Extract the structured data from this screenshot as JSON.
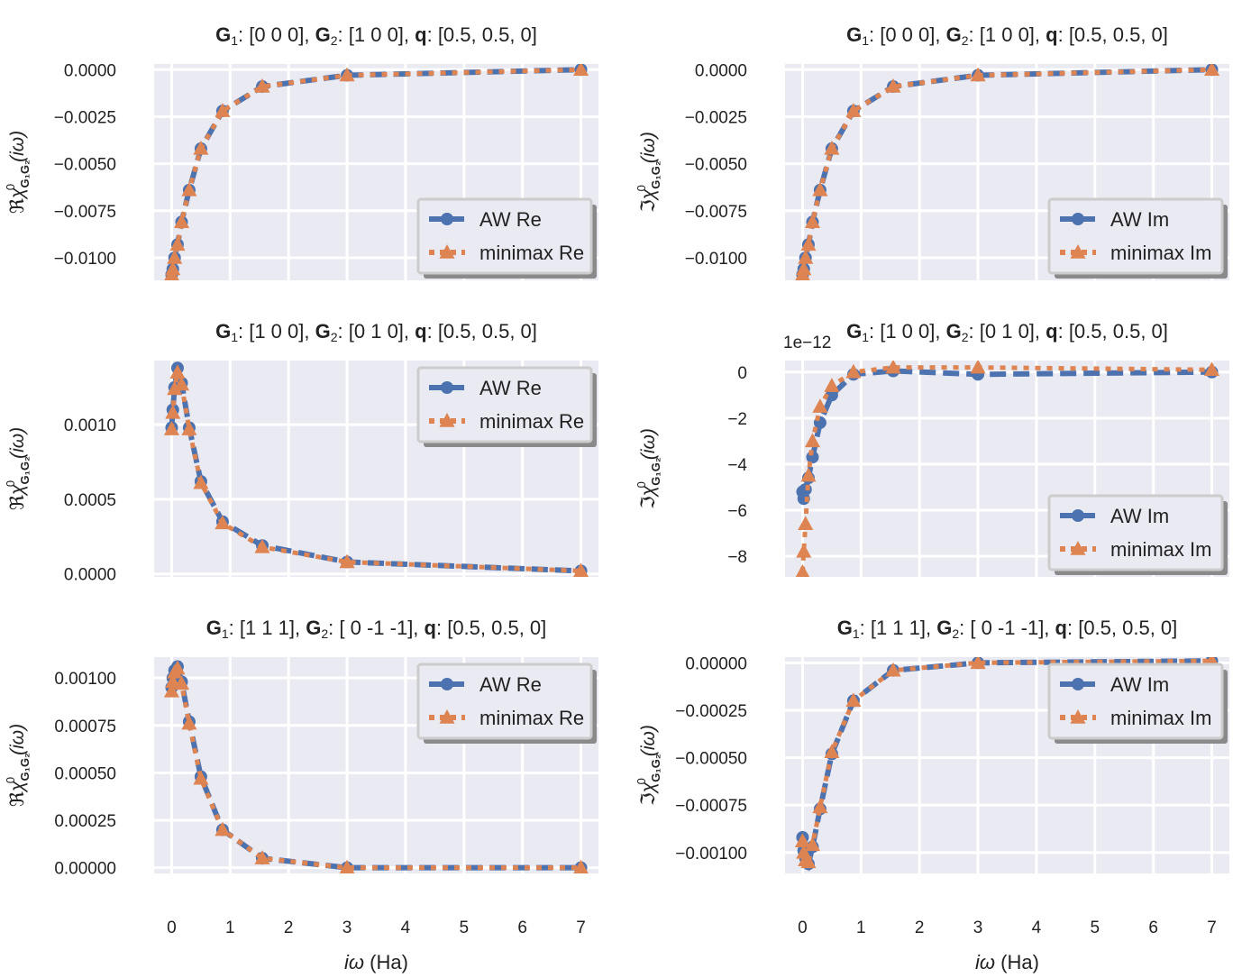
{
  "figure": {
    "xlabel_prefix": "iω",
    "xlabel_unit": " (Ha)"
  },
  "colors": {
    "aw": "#4c72b0",
    "minimax": "#dd8452",
    "plot_bg": "#eaeaf2",
    "grid": "#ffffff"
  },
  "chart_data": [
    {
      "type": "line",
      "title": "G₁: [0 0 0], G₂: [1 0 0], q: [0.5, 0.5, 0]",
      "title_parts": [
        [
          "G",
          true
        ],
        [
          "1",
          false,
          "sub"
        ],
        [
          ": [0 0 0], ",
          false
        ],
        [
          "G",
          true
        ],
        [
          "2",
          false,
          "sub"
        ],
        [
          ": [1 0 0], ",
          false
        ],
        [
          "q",
          true
        ],
        [
          ": [0.5, 0.5, 0]",
          false
        ]
      ],
      "ylabel": "ℜχ⁰G₁G₂(iω)",
      "ylabel_prefix": "ℜ",
      "xlim": [
        -0.3,
        7.3
      ],
      "ylim": [
        -0.0112,
        0.0003
      ],
      "yticks": [
        0.0,
        -0.0025,
        -0.005,
        -0.0075,
        -0.01
      ],
      "yticklabels": [
        "0.0000",
        "−0.0025",
        "−0.0050",
        "−0.0075",
        "−0.0100"
      ],
      "xticks": [
        0,
        1,
        2,
        3,
        4,
        5,
        6,
        7
      ],
      "xticklabels": [],
      "legend": {
        "placement": "lower right"
      },
      "series": [
        {
          "name": "AW Re",
          "marker": "circle",
          "x": [
            0.0,
            0.02,
            0.05,
            0.1,
            0.17,
            0.3,
            0.5,
            0.87,
            1.55,
            3.0,
            7.0
          ],
          "y": [
            -0.0109,
            -0.0106,
            -0.01,
            -0.0093,
            -0.0081,
            -0.0064,
            -0.0042,
            -0.0022,
            -0.0009,
            -0.0003,
            0.0
          ]
        },
        {
          "name": "minimax Re",
          "marker": "triangle",
          "x": [
            0.0,
            0.02,
            0.05,
            0.1,
            0.17,
            0.3,
            0.5,
            0.87,
            1.55,
            3.0,
            7.0
          ],
          "y": [
            -0.0109,
            -0.0106,
            -0.01,
            -0.0093,
            -0.0081,
            -0.0064,
            -0.0042,
            -0.0022,
            -0.0009,
            -0.0003,
            0.0
          ]
        }
      ]
    },
    {
      "type": "line",
      "title": "G₁: [0 0 0], G₂: [1 0 0], q: [0.5, 0.5, 0]",
      "title_parts": [
        [
          "G",
          true
        ],
        [
          "1",
          false,
          "sub"
        ],
        [
          ": [0 0 0], ",
          false
        ],
        [
          "G",
          true
        ],
        [
          "2",
          false,
          "sub"
        ],
        [
          ": [1 0 0], ",
          false
        ],
        [
          "q",
          true
        ],
        [
          ": [0.5, 0.5, 0]",
          false
        ]
      ],
      "ylabel": "ℑχ⁰G₁G₂(iω)",
      "ylabel_prefix": "ℑ",
      "xlim": [
        -0.3,
        7.3
      ],
      "ylim": [
        -0.0112,
        0.0003
      ],
      "yticks": [
        0.0,
        -0.0025,
        -0.005,
        -0.0075,
        -0.01
      ],
      "yticklabels": [
        "0.0000",
        "−0.0025",
        "−0.0050",
        "−0.0075",
        "−0.0100"
      ],
      "xticks": [
        0,
        1,
        2,
        3,
        4,
        5,
        6,
        7
      ],
      "xticklabels": [],
      "legend": {
        "placement": "lower right"
      },
      "series": [
        {
          "name": "AW Im",
          "marker": "circle",
          "x": [
            0.0,
            0.02,
            0.05,
            0.1,
            0.17,
            0.3,
            0.5,
            0.87,
            1.55,
            3.0,
            7.0
          ],
          "y": [
            -0.0109,
            -0.0106,
            -0.01,
            -0.0093,
            -0.0081,
            -0.0064,
            -0.0042,
            -0.0022,
            -0.0009,
            -0.0003,
            0.0
          ]
        },
        {
          "name": "minimax Im",
          "marker": "triangle",
          "x": [
            0.0,
            0.02,
            0.05,
            0.1,
            0.17,
            0.3,
            0.5,
            0.87,
            1.55,
            3.0,
            7.0
          ],
          "y": [
            -0.0109,
            -0.0106,
            -0.01,
            -0.0093,
            -0.0081,
            -0.0064,
            -0.0042,
            -0.0022,
            -0.0009,
            -0.0003,
            0.0
          ]
        }
      ]
    },
    {
      "type": "line",
      "title": "G₁: [1 0 0], G₂: [0 1 0], q: [0.5, 0.5, 0]",
      "title_parts": [
        [
          "G",
          true
        ],
        [
          "1",
          false,
          "sub"
        ],
        [
          ": [1 0 0], ",
          false
        ],
        [
          "G",
          true
        ],
        [
          "2",
          false,
          "sub"
        ],
        [
          ": [0 1 0], ",
          false
        ],
        [
          "q",
          true
        ],
        [
          ": [0.5, 0.5, 0]",
          false
        ]
      ],
      "ylabel": "ℜχ⁰G₁G₂(iω)",
      "ylabel_prefix": "ℜ",
      "xlim": [
        -0.3,
        7.3
      ],
      "ylim": [
        -2e-05,
        0.00143
      ],
      "yticks": [
        0.0,
        0.0005,
        0.001
      ],
      "yticklabels": [
        "0.0000",
        "0.0005",
        "0.0010"
      ],
      "xticks": [
        0,
        1,
        2,
        3,
        4,
        5,
        6,
        7
      ],
      "xticklabels": [],
      "legend": {
        "placement": "upper right"
      },
      "series": [
        {
          "name": "AW Re",
          "marker": "circle",
          "x": [
            0.0,
            0.02,
            0.05,
            0.1,
            0.17,
            0.3,
            0.5,
            0.87,
            1.55,
            3.0,
            7.0
          ],
          "y": [
            0.00098,
            0.0011,
            0.00125,
            0.00138,
            0.00128,
            0.00098,
            0.00062,
            0.00035,
            0.00019,
            8e-05,
            2e-05
          ]
        },
        {
          "name": "minimax Re",
          "marker": "triangle",
          "x": [
            0.0,
            0.02,
            0.05,
            0.1,
            0.17,
            0.3,
            0.5,
            0.87,
            1.55,
            3.0,
            7.0
          ],
          "y": [
            0.00097,
            0.00108,
            0.00124,
            0.00135,
            0.00127,
            0.00097,
            0.00061,
            0.00034,
            0.00018,
            8e-05,
            2e-05
          ]
        }
      ]
    },
    {
      "type": "line",
      "title": "G₁: [1 0 0], G₂: [0 1 0], q: [0.5, 0.5, 0]",
      "title_parts": [
        [
          "G",
          true
        ],
        [
          "1",
          false,
          "sub"
        ],
        [
          ": [1 0 0], ",
          false
        ],
        [
          "G",
          true
        ],
        [
          "2",
          false,
          "sub"
        ],
        [
          ": [0 1 0], ",
          false
        ],
        [
          "q",
          true
        ],
        [
          ": [0.5, 0.5, 0]",
          false
        ]
      ],
      "ylabel": "ℑχ⁰G₁G₂(iω)",
      "ylabel_prefix": "ℑ",
      "offset_text": "1e−12",
      "xlim": [
        -0.3,
        7.3
      ],
      "ylim": [
        -8.9,
        0.5
      ],
      "yticks": [
        0,
        -2,
        -4,
        -6,
        -8
      ],
      "yticklabels": [
        "0",
        "−2",
        "−4",
        "−6",
        "−8"
      ],
      "xticks": [
        0,
        1,
        2,
        3,
        4,
        5,
        6,
        7
      ],
      "xticklabels": [],
      "legend": {
        "placement": "lower right"
      },
      "series": [
        {
          "name": "AW Im",
          "marker": "circle",
          "x": [
            0.0,
            0.02,
            0.05,
            0.1,
            0.17,
            0.3,
            0.5,
            0.87,
            1.55,
            3.0,
            7.0
          ],
          "y": [
            -5.2,
            -5.5,
            -5.1,
            -4.6,
            -3.7,
            -2.2,
            -1.0,
            -0.1,
            0.05,
            -0.1,
            0.0
          ]
        },
        {
          "name": "minimax Im",
          "marker": "triangle",
          "x": [
            0.0,
            0.02,
            0.05,
            0.1,
            0.17,
            0.3,
            0.5,
            0.87,
            1.55,
            3.0,
            7.0
          ],
          "y": [
            -8.7,
            -7.8,
            -6.6,
            -4.5,
            -3.0,
            -1.5,
            -0.6,
            0.0,
            0.2,
            0.2,
            0.1
          ]
        }
      ]
    },
    {
      "type": "line",
      "title": "G₁: [1 1 1], G₂: [ 0 -1 -1], q: [0.5, 0.5, 0]",
      "title_parts": [
        [
          "G",
          true
        ],
        [
          "1",
          false,
          "sub"
        ],
        [
          ": [1 1 1], ",
          false
        ],
        [
          "G",
          true
        ],
        [
          "2",
          false,
          "sub"
        ],
        [
          ": [ 0 -1 -1], ",
          false
        ],
        [
          "q",
          true
        ],
        [
          ": [0.5, 0.5, 0]",
          false
        ]
      ],
      "ylabel": "ℜχ⁰G₁G₂(iω)",
      "ylabel_prefix": "ℜ",
      "xlim": [
        -0.3,
        7.3
      ],
      "ylim": [
        -3e-05,
        0.00111
      ],
      "yticks": [
        0.0,
        0.00025,
        0.0005,
        0.00075,
        0.001
      ],
      "yticklabels": [
        "0.00000",
        "0.00025",
        "0.00050",
        "0.00075",
        "0.00100"
      ],
      "xticks": [
        0,
        1,
        2,
        3,
        4,
        5,
        6,
        7
      ],
      "xticklabels": [
        "0",
        "1",
        "2",
        "3",
        "4",
        "5",
        "6",
        "7"
      ],
      "legend": {
        "placement": "upper right"
      },
      "series": [
        {
          "name": "AW Re",
          "marker": "circle",
          "x": [
            0.0,
            0.02,
            0.05,
            0.1,
            0.17,
            0.3,
            0.5,
            0.87,
            1.55,
            3.0,
            7.0
          ],
          "y": [
            0.00095,
            0.001,
            0.00104,
            0.00106,
            0.00098,
            0.00077,
            0.00048,
            0.0002,
            5e-05,
            0.0,
            0.0
          ]
        },
        {
          "name": "minimax Re",
          "marker": "triangle",
          "x": [
            0.0,
            0.02,
            0.05,
            0.1,
            0.17,
            0.3,
            0.5,
            0.87,
            1.55,
            3.0,
            7.0
          ],
          "y": [
            0.00093,
            0.00098,
            0.00103,
            0.00105,
            0.00097,
            0.00076,
            0.00047,
            0.0002,
            5e-05,
            0.0,
            0.0
          ]
        }
      ]
    },
    {
      "type": "line",
      "title": "G₁: [1 1 1], G₂: [ 0 -1 -1], q: [0.5, 0.5, 0]",
      "title_parts": [
        [
          "G",
          true
        ],
        [
          "1",
          false,
          "sub"
        ],
        [
          ": [1 1 1], ",
          false
        ],
        [
          "G",
          true
        ],
        [
          "2",
          false,
          "sub"
        ],
        [
          ": [ 0 -1 -1], ",
          false
        ],
        [
          "q",
          true
        ],
        [
          ": [0.5, 0.5, 0]",
          false
        ]
      ],
      "ylabel": "ℑχ⁰G₁G₂(iω)",
      "ylabel_prefix": "ℑ",
      "xlim": [
        -0.3,
        7.3
      ],
      "ylim": [
        -0.00111,
        3e-05
      ],
      "yticks": [
        0.0,
        -0.00025,
        -0.0005,
        -0.00075,
        -0.001
      ],
      "yticklabels": [
        "0.00000",
        "−0.00025",
        "−0.00050",
        "−0.00075",
        "−0.00100"
      ],
      "xticks": [
        0,
        1,
        2,
        3,
        4,
        5,
        6,
        7
      ],
      "xticklabels": [
        "0",
        "1",
        "2",
        "3",
        "4",
        "5",
        "6",
        "7"
      ],
      "legend": {
        "placement": "upper right"
      },
      "series": [
        {
          "name": "AW Im",
          "marker": "circle",
          "x": [
            0.0,
            0.02,
            0.05,
            0.1,
            0.17,
            0.3,
            0.5,
            0.87,
            1.55,
            3.0,
            7.0
          ],
          "y": [
            -0.00092,
            -0.00099,
            -0.00103,
            -0.00106,
            -0.00097,
            -0.00077,
            -0.00048,
            -0.0002,
            -4e-05,
            0.0,
            1e-05
          ]
        },
        {
          "name": "minimax Im",
          "marker": "triangle",
          "x": [
            0.0,
            0.02,
            0.05,
            0.1,
            0.17,
            0.3,
            0.5,
            0.87,
            1.55,
            3.0,
            7.0
          ],
          "y": [
            -0.00094,
            -0.001,
            -0.00104,
            -0.00105,
            -0.00096,
            -0.00076,
            -0.00047,
            -0.0002,
            -4e-05,
            0.0,
            1e-05
          ]
        }
      ]
    }
  ]
}
